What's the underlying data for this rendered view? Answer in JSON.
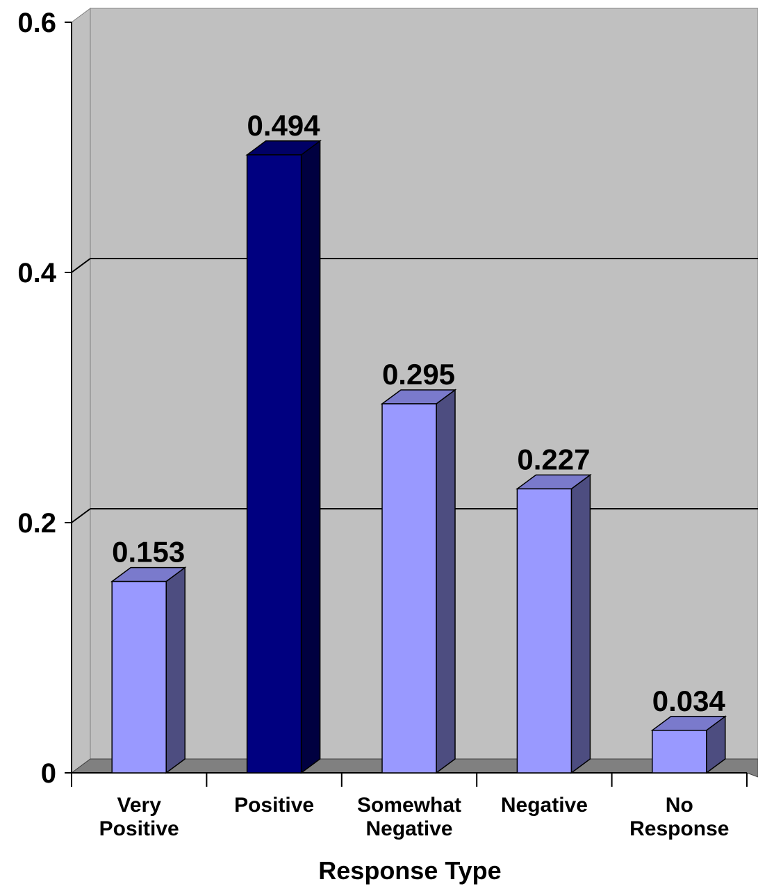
{
  "chart_data": {
    "type": "bar",
    "style": "3d",
    "title": "",
    "xlabel": "Response Type",
    "ylabel": "",
    "ylim": [
      0,
      0.6
    ],
    "yticks": [
      {
        "value": 0,
        "label": "0"
      },
      {
        "value": 0.2,
        "label": "0.2"
      },
      {
        "value": 0.4,
        "label": "0.4"
      },
      {
        "value": 0.6,
        "label": "0.6"
      }
    ],
    "gridlines": [
      0.2,
      0.4
    ],
    "categories": [
      {
        "lines": [
          "Very",
          "Positive"
        ]
      },
      {
        "lines": [
          "Positive"
        ]
      },
      {
        "lines": [
          "Somewhat",
          "Negative"
        ]
      },
      {
        "lines": [
          "Negative"
        ]
      },
      {
        "lines": [
          "No",
          "Response"
        ]
      }
    ],
    "series": [
      {
        "values": [
          0.153,
          0.494,
          0.295,
          0.227,
          0.034
        ],
        "labels": [
          "0.153",
          "0.494",
          "0.295",
          "0.227",
          "0.034"
        ],
        "highlight_index": 1
      }
    ],
    "grid": true,
    "legend": "none",
    "colors": {
      "bar_face": "#9999ff",
      "bar_side": "#4d4d80",
      "bar_top": "#7a7acc",
      "highlight_face": "#000080",
      "highlight_side": "#000040",
      "highlight_top": "#000066",
      "plot_background": "#c0c0c0",
      "floor": "#808080",
      "gridline": "#000000"
    }
  }
}
